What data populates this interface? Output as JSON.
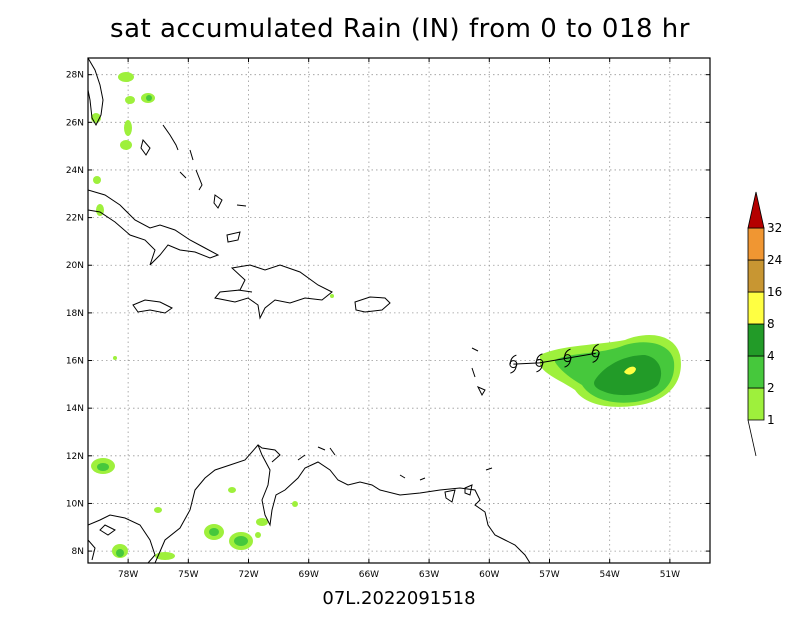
{
  "title": "sat accumulated Rain (IN) from 0 to 018 hr",
  "footer": "07L.2022091518",
  "map": {
    "lon_range": [
      -80,
      -49
    ],
    "lat_range": [
      7.5,
      28.7
    ],
    "lon_ticks": [
      "78W",
      "75W",
      "72W",
      "69W",
      "66W",
      "63W",
      "60W",
      "57W",
      "54W",
      "51W"
    ],
    "lon_tick_values": [
      -78,
      -75,
      -72,
      -69,
      -66,
      -63,
      -60,
      -57,
      -54,
      -51
    ],
    "lat_ticks": [
      "8N",
      "10N",
      "12N",
      "14N",
      "16N",
      "18N",
      "20N",
      "22N",
      "24N",
      "26N",
      "28N"
    ],
    "lat_tick_values": [
      8,
      10,
      12,
      14,
      16,
      18,
      20,
      22,
      24,
      26,
      28
    ],
    "grid": true
  },
  "colorbar": {
    "labels": [
      "1",
      "2",
      "4",
      "8",
      "16",
      "24",
      "32"
    ],
    "colors": [
      "#9ef03c",
      "#46c83c",
      "#229b28",
      "#ffff42",
      "#c89632",
      "#f09632",
      "#b40000"
    ],
    "orientation": "vertical",
    "placement": "right"
  },
  "track": {
    "symbol": "tropical-storm-icon",
    "points": [
      [
        -58.8,
        15.85
      ],
      [
        -57.5,
        15.9
      ],
      [
        -56.1,
        16.1
      ],
      [
        -54.7,
        16.3
      ]
    ]
  }
}
